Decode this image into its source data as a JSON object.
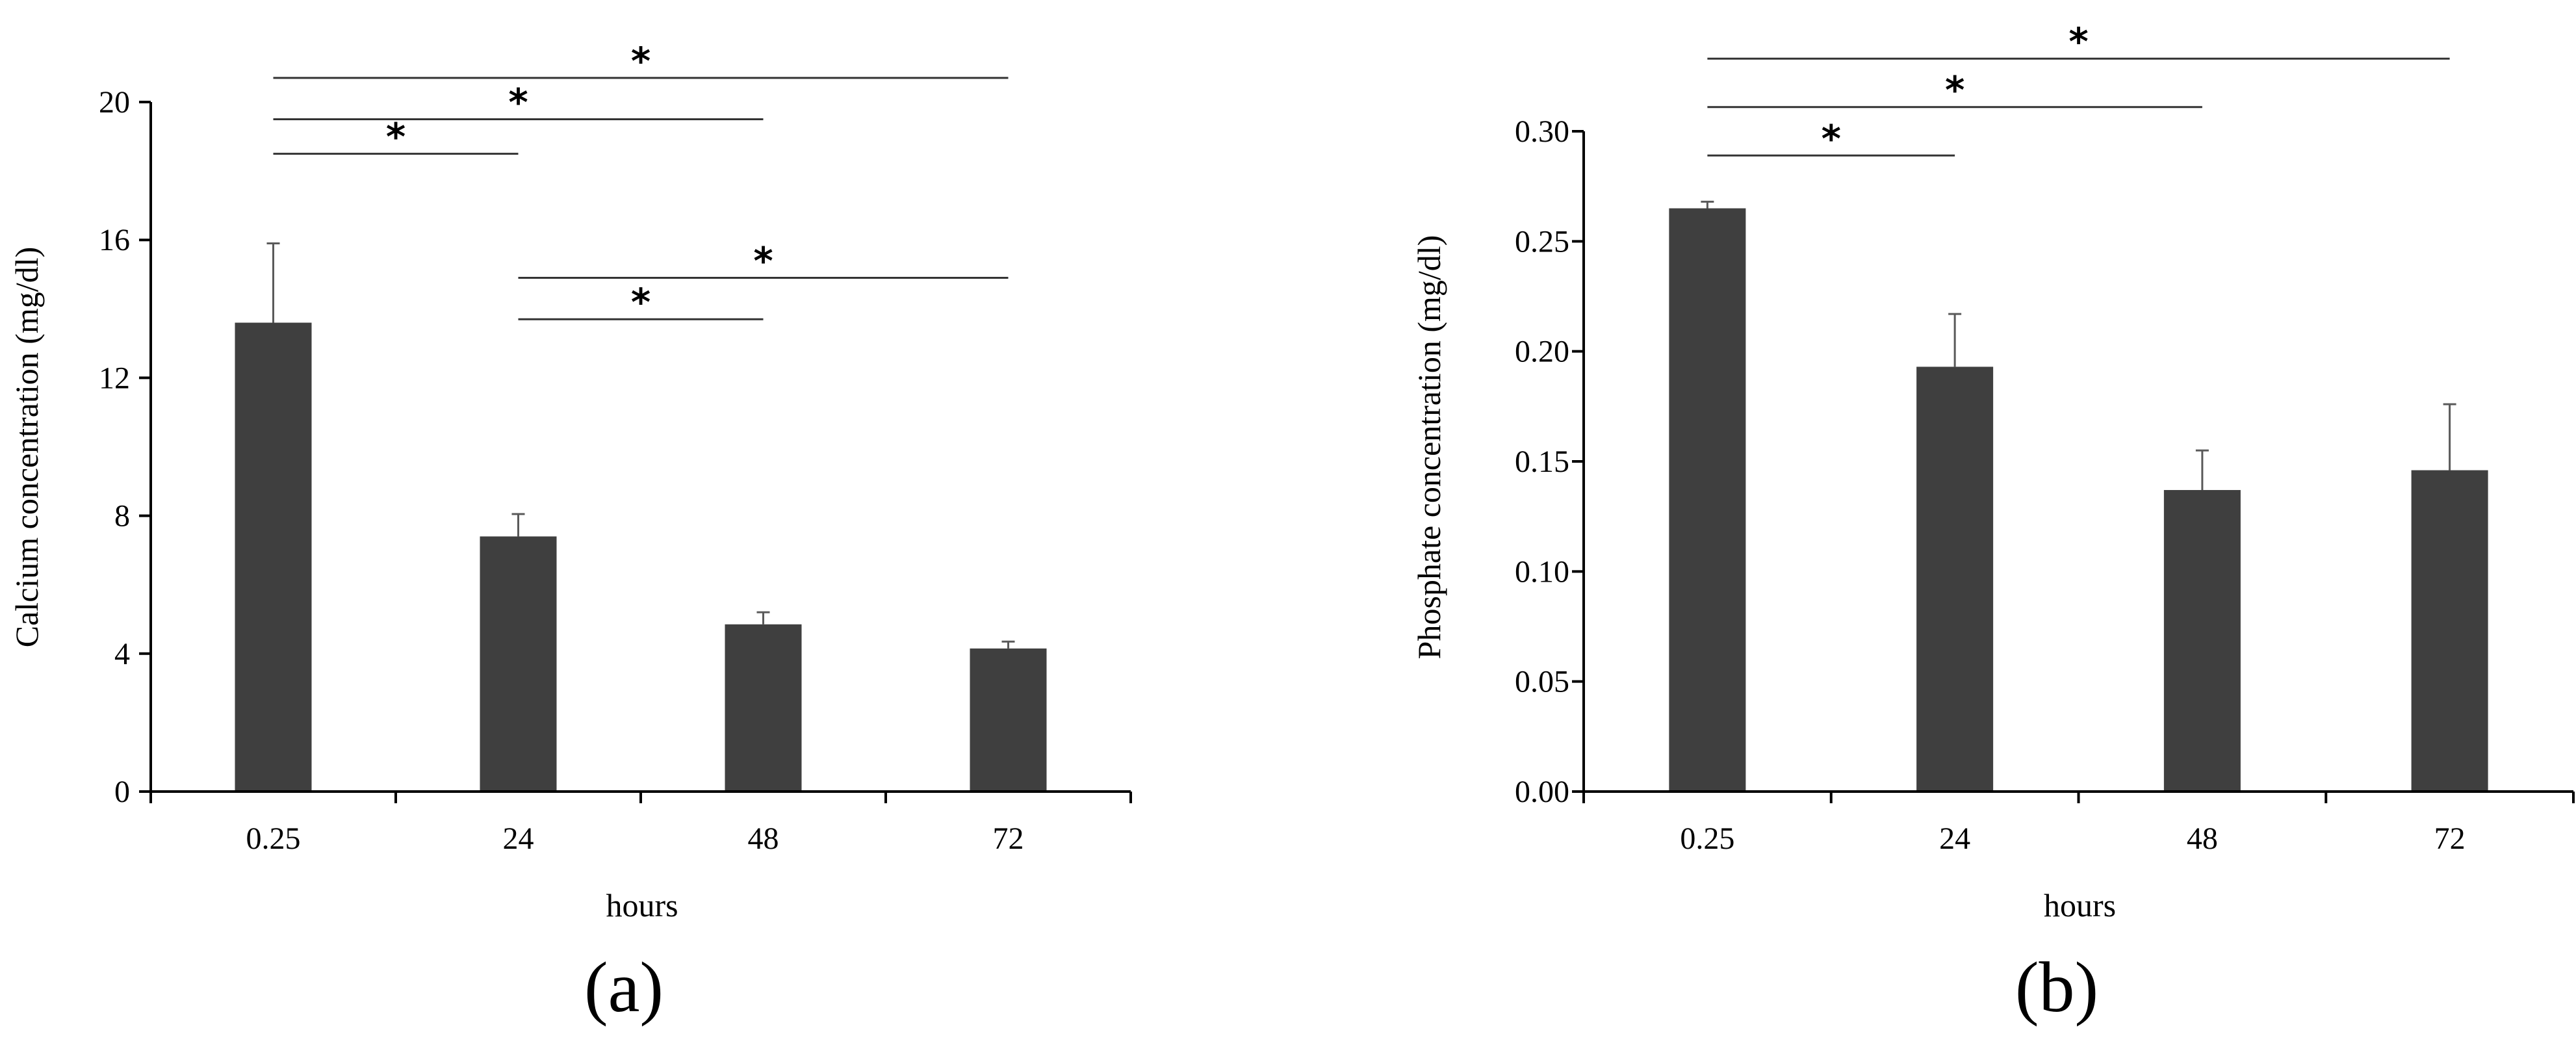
{
  "chart_data": [
    {
      "type": "bar",
      "panel_label": "(a)",
      "categories": [
        "0.25",
        "24",
        "48",
        "72"
      ],
      "values": [
        13.6,
        7.4,
        4.85,
        4.15
      ],
      "errors": [
        2.3,
        0.65,
        0.35,
        0.2
      ],
      "xlabel": "hours",
      "ylabel": "Calcium concentration (mg/dl)",
      "ylim": [
        0,
        20
      ],
      "yticks": [
        "0",
        "4",
        "8",
        "12",
        "16",
        "20"
      ],
      "grid": false,
      "bar_color": "#3f3f3f",
      "significance": [
        {
          "from": 0,
          "to": 3,
          "y": 20.7,
          "label": "*"
        },
        {
          "from": 0,
          "to": 2,
          "y": 19.5,
          "label": "*"
        },
        {
          "from": 0,
          "to": 1,
          "y": 18.5,
          "label": "*"
        },
        {
          "from": 1,
          "to": 3,
          "y": 14.9,
          "label": "*"
        },
        {
          "from": 1,
          "to": 2,
          "y": 13.7,
          "label": "*"
        }
      ]
    },
    {
      "type": "bar",
      "panel_label": "(b)",
      "categories": [
        "0.25",
        "24",
        "48",
        "72"
      ],
      "values": [
        0.265,
        0.193,
        0.137,
        0.146
      ],
      "errors": [
        0.003,
        0.024,
        0.018,
        0.03
      ],
      "xlabel": "hours",
      "ylabel": "Phosphate concentration (mg/dl)",
      "ylim": [
        0,
        0.3
      ],
      "yticks": [
        "0.00",
        "0.05",
        "0.10",
        "0.15",
        "0.20",
        "0.25",
        "0.30"
      ],
      "grid": false,
      "bar_color": "#3f3f3f",
      "significance": [
        {
          "from": 0,
          "to": 3,
          "y": 0.333,
          "label": "*"
        },
        {
          "from": 0,
          "to": 2,
          "y": 0.311,
          "label": "*"
        },
        {
          "from": 0,
          "to": 1,
          "y": 0.289,
          "label": "*"
        }
      ]
    }
  ]
}
